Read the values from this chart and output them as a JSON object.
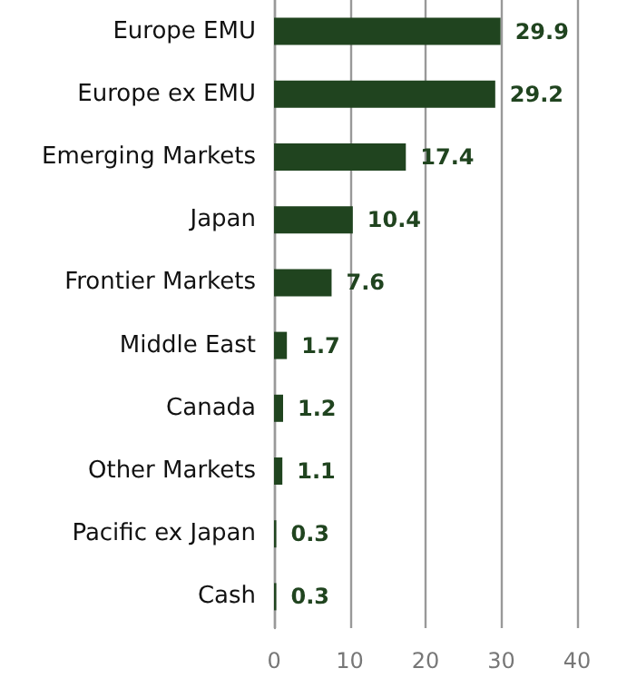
{
  "chart_data": {
    "type": "bar",
    "orientation": "horizontal",
    "categories": [
      "Europe EMU",
      "Europe ex EMU",
      "Emerging Markets",
      "Japan",
      "Frontier Markets",
      "Middle East",
      "Canada",
      "Other Markets",
      "Pacific ex Japan",
      "Cash"
    ],
    "values": [
      29.9,
      29.2,
      17.4,
      10.4,
      7.6,
      1.7,
      1.2,
      1.1,
      0.3,
      0.3
    ],
    "color": "#20441f",
    "xlim": [
      0,
      40
    ],
    "xticks": [
      0,
      10,
      20,
      30,
      40
    ],
    "grid": "x",
    "data_labels": true
  }
}
